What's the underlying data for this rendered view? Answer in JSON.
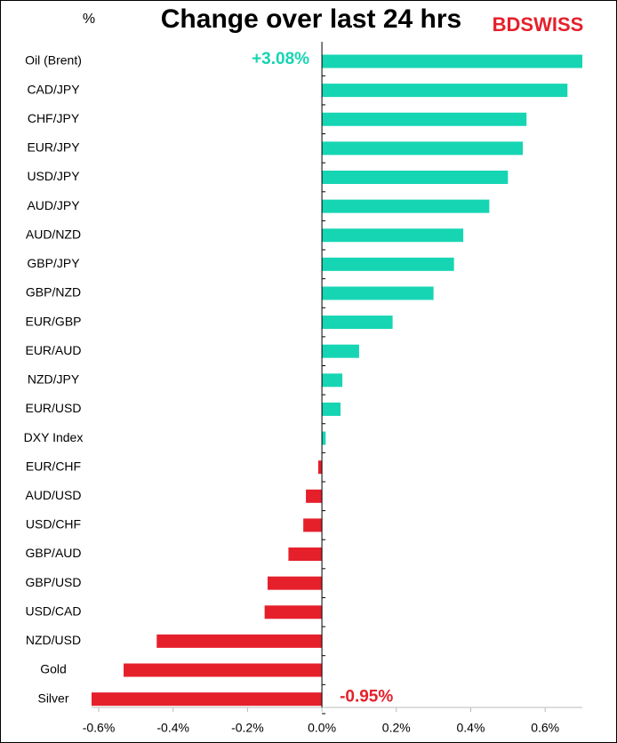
{
  "chart_data": {
    "type": "hbar",
    "title": "Change over last 24 hrs",
    "unit_label": "%",
    "brand": "BDSWISS",
    "categories": [
      "Oil (Brent)",
      "CAD/JPY",
      "CHF/JPY",
      "EUR/JPY",
      "USD/JPY",
      "AUD/JPY",
      "AUD/NZD",
      "GBP/JPY",
      "GBP/NZD",
      "EUR/GBP",
      "EUR/AUD",
      "NZD/JPY",
      "EUR/USD",
      "DXY Index",
      "EUR/CHF",
      "AUD/USD",
      "USD/CHF",
      "GBP/AUD",
      "GBP/USD",
      "USD/CAD",
      "NZD/USD",
      "Gold",
      "Silver"
    ],
    "values": [
      3.08,
      0.66,
      0.55,
      0.54,
      0.5,
      0.45,
      0.38,
      0.355,
      0.3,
      0.19,
      0.1,
      0.055,
      0.05,
      0.01,
      -0.01,
      -0.043,
      -0.05,
      -0.09,
      -0.146,
      -0.154,
      -0.444,
      -0.533,
      -0.95
    ],
    "value_labels": [
      "+3.08%",
      null,
      null,
      null,
      null,
      null,
      null,
      null,
      null,
      null,
      null,
      null,
      null,
      null,
      null,
      null,
      null,
      null,
      null,
      null,
      null,
      null,
      "-0.95%"
    ],
    "positive_color": "#16d5b3",
    "negative_color": "#e5202b",
    "xlim": [
      -0.6,
      0.7
    ],
    "xticks": [
      {
        "value": -0.6,
        "label": "-0.6%"
      },
      {
        "value": -0.4,
        "label": "-0.4%"
      },
      {
        "value": -0.2,
        "label": "-0.2%"
      },
      {
        "value": 0,
        "label": "0.0%"
      },
      {
        "value": 0.2,
        "label": "0.2%"
      },
      {
        "value": 0.4,
        "label": "0.4%"
      },
      {
        "value": 0.6,
        "label": "0.6%"
      }
    ]
  }
}
